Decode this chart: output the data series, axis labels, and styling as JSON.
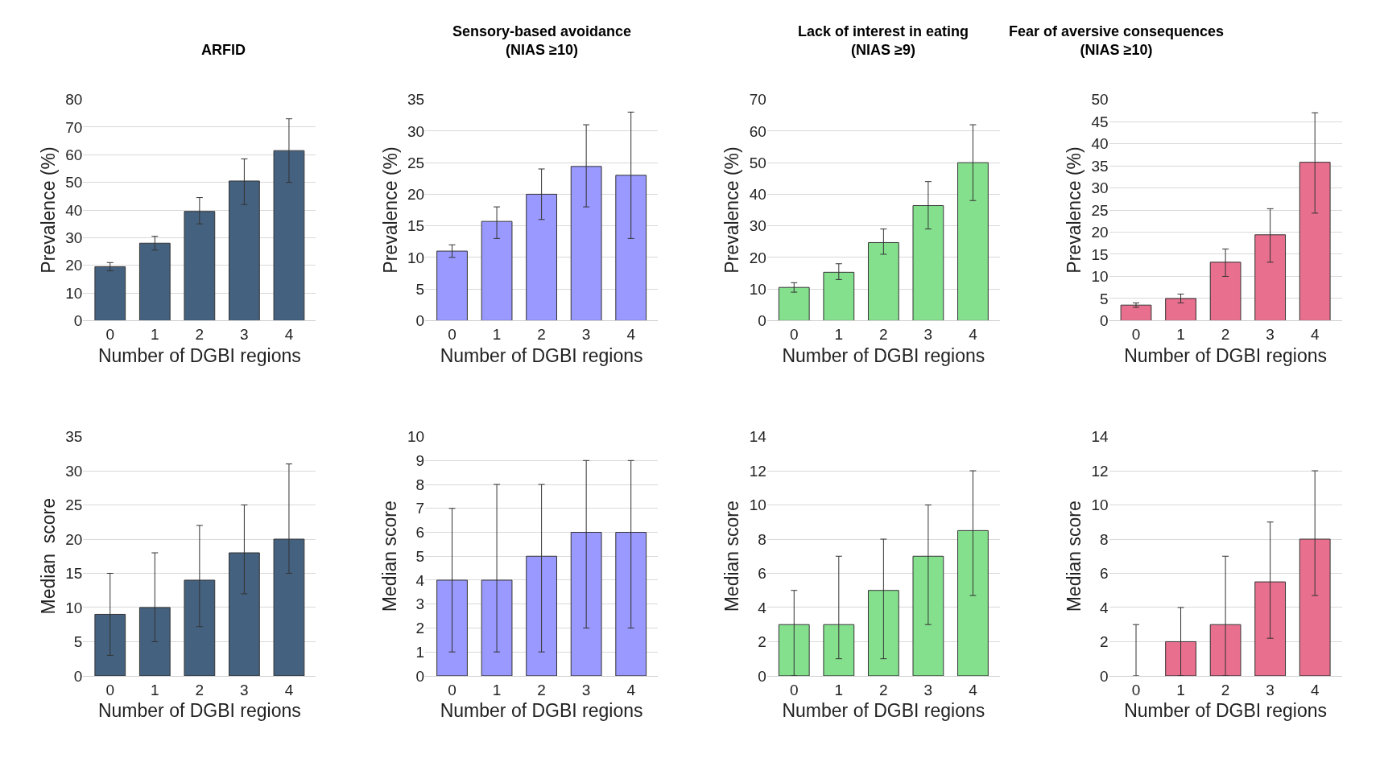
{
  "chart_data": [
    {
      "type": "bar",
      "title": "ARFID",
      "xlabel": "Number of DGBI regions",
      "ylabel": "Prevalence (%)",
      "categories": [
        "0",
        "1",
        "2",
        "3",
        "4"
      ],
      "values": [
        19.5,
        28,
        39.5,
        50.5,
        61.5
      ],
      "errors": [
        [
          18,
          21
        ],
        [
          25.5,
          30.5
        ],
        [
          35,
          44.5
        ],
        [
          42,
          58.5
        ],
        [
          50,
          73
        ]
      ],
      "color": "#44617f",
      "ylim": [
        0,
        80
      ],
      "yticks": [
        0,
        10,
        20,
        30,
        40,
        50,
        60,
        70,
        80
      ],
      "grid": "y"
    },
    {
      "type": "bar",
      "title": "Sensory-based avoidance\n(NIAS ≥10)",
      "xlabel": "Number of DGBI regions",
      "ylabel": "Prevalence (%)",
      "categories": [
        "0",
        "1",
        "2",
        "3",
        "4"
      ],
      "values": [
        11,
        15.7,
        20,
        24.4,
        23
      ],
      "errors": [
        [
          10,
          12
        ],
        [
          13,
          18
        ],
        [
          16,
          24
        ],
        [
          18,
          31
        ],
        [
          13,
          33
        ]
      ],
      "color": "#9999ff",
      "ylim": [
        0,
        35
      ],
      "yticks": [
        0,
        5,
        10,
        15,
        20,
        25,
        30,
        35
      ],
      "grid": "y"
    },
    {
      "type": "bar",
      "title": "Lack of interest in eating\n(NIAS ≥9)",
      "xlabel": "Number of DGBI regions",
      "ylabel": "Prevalence (%)",
      "categories": [
        "0",
        "1",
        "2",
        "3",
        "4"
      ],
      "values": [
        10.5,
        15.3,
        24.7,
        36.4,
        50
      ],
      "errors": [
        [
          9,
          12
        ],
        [
          13,
          18
        ],
        [
          21,
          29
        ],
        [
          29,
          44
        ],
        [
          38,
          62
        ]
      ],
      "color": "#85e08e",
      "ylim": [
        0,
        70
      ],
      "yticks": [
        0,
        10,
        20,
        30,
        40,
        50,
        60,
        70
      ],
      "grid": "y"
    },
    {
      "type": "bar",
      "title": "Fear of aversive consequences\n(NIAS ≥10)",
      "xlabel": "Number of DGBI regions",
      "ylabel": "Prevalence (%)",
      "categories": [
        "0",
        "1",
        "2",
        "3",
        "4"
      ],
      "values": [
        3.5,
        5,
        13.2,
        19.4,
        35.8
      ],
      "errors": [
        [
          3,
          4
        ],
        [
          4,
          6
        ],
        [
          10,
          16.2
        ],
        [
          13.2,
          25.3
        ],
        [
          24.3,
          47
        ]
      ],
      "color": "#e8708e",
      "ylim": [
        0,
        50
      ],
      "yticks": [
        0,
        5,
        10,
        15,
        20,
        25,
        30,
        35,
        40,
        45,
        50
      ],
      "grid": "y"
    },
    {
      "type": "bar",
      "xlabel": "Number of DGBI regions",
      "ylabel": "Median  score",
      "categories": [
        "0",
        "1",
        "2",
        "3",
        "4"
      ],
      "values": [
        9,
        10,
        14,
        18,
        20
      ],
      "errors": [
        [
          3,
          15
        ],
        [
          5,
          18
        ],
        [
          7.2,
          22
        ],
        [
          12,
          25
        ],
        [
          15,
          31
        ]
      ],
      "color": "#44617f",
      "ylim": [
        0,
        35
      ],
      "yticks": [
        0,
        5,
        10,
        15,
        20,
        25,
        30,
        35
      ],
      "grid": "y"
    },
    {
      "type": "bar",
      "xlabel": "Number of DGBI regions",
      "ylabel": "Median score",
      "categories": [
        "0",
        "1",
        "2",
        "3",
        "4"
      ],
      "values": [
        4,
        4,
        5,
        6,
        6
      ],
      "errors": [
        [
          1,
          7
        ],
        [
          1,
          8
        ],
        [
          1,
          8
        ],
        [
          2,
          9
        ],
        [
          2,
          9
        ]
      ],
      "color": "#9999ff",
      "ylim": [
        0,
        10
      ],
      "yticks": [
        0,
        1,
        2,
        3,
        4,
        5,
        6,
        7,
        8,
        9,
        10
      ],
      "grid": "y"
    },
    {
      "type": "bar",
      "xlabel": "Number of DGBI regions",
      "ylabel": "Median score",
      "categories": [
        "0",
        "1",
        "2",
        "3",
        "4"
      ],
      "values": [
        3,
        3,
        5,
        7,
        8.5
      ],
      "errors": [
        [
          0,
          5
        ],
        [
          1,
          7
        ],
        [
          1,
          8
        ],
        [
          3,
          10
        ],
        [
          4.7,
          12
        ]
      ],
      "color": "#85e08e",
      "ylim": [
        0,
        14
      ],
      "yticks": [
        0,
        2,
        4,
        6,
        8,
        10,
        12,
        14
      ],
      "grid": "y"
    },
    {
      "type": "bar",
      "xlabel": "Number of DGBI regions",
      "ylabel": "Median score",
      "categories": [
        "0",
        "1",
        "2",
        "3",
        "4"
      ],
      "values": [
        0,
        2,
        3,
        5.5,
        8
      ],
      "errors": [
        [
          0,
          3
        ],
        [
          0,
          4
        ],
        [
          0,
          7
        ],
        [
          2.2,
          9
        ],
        [
          4.7,
          12
        ]
      ],
      "color": "#e8708e",
      "ylim": [
        0,
        14
      ],
      "yticks": [
        0,
        2,
        4,
        6,
        8,
        10,
        12,
        14
      ],
      "grid": "y"
    }
  ]
}
